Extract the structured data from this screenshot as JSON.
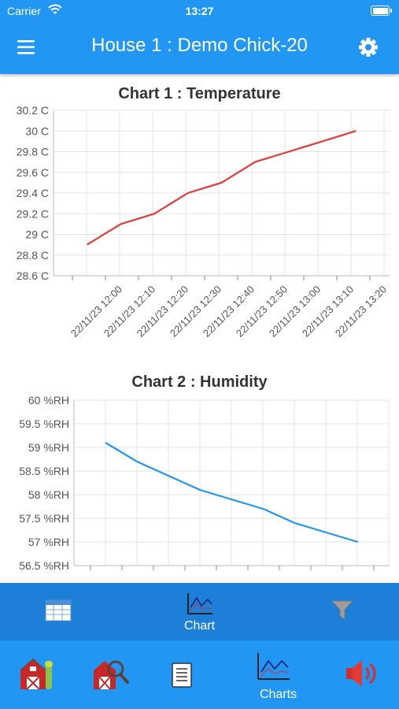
{
  "status_bar": {
    "carrier": "Carrier",
    "time": "13:27"
  },
  "header": {
    "title": "House 1 : Demo Chick-20"
  },
  "charts": [
    {
      "title": "Chart 1 : Temperature",
      "chart_data": {
        "type": "line",
        "title": "Chart 1 : Temperature",
        "unit": "C",
        "color": "#e53935",
        "y_ticks": [
          "30.2 C",
          "30 C",
          "29.8 C",
          "29.6 C",
          "29.4 C",
          "29.2 C",
          "29 C",
          "28.8 C",
          "28.6 C"
        ],
        "ylim": [
          28.6,
          30.2
        ],
        "x_ticks": [
          "22/11/23 12:00",
          "22/11/23 12:10",
          "22/11/23 12:20",
          "22/11/23 12:30",
          "22/11/23 12:40",
          "22/11/23 12:50",
          "22/11/23 13:00",
          "22/11/23 13:10",
          "22/11/23 13:20"
        ],
        "series": [
          {
            "x": [
              "22/11/23 11:55",
              "22/11/23 12:05",
              "22/11/23 12:15",
              "22/11/23 12:25",
              "22/11/23 12:35",
              "22/11/23 12:45",
              "22/11/23 12:55",
              "22/11/23 13:05",
              "22/11/23 13:15"
            ],
            "values": [
              28.9,
              29.1,
              29.2,
              29.4,
              29.5,
              29.7,
              29.8,
              29.9,
              30.0
            ]
          }
        ],
        "grid": true
      }
    },
    {
      "title": "Chart 2 : Humidity",
      "chart_data": {
        "type": "line",
        "title": "Chart 2 : Humidity",
        "unit": "%RH",
        "color": "#2196F3",
        "y_ticks": [
          "60 %RH",
          "59.5 %RH",
          "59 %RH",
          "58.5 %RH",
          "58 %RH",
          "57.5 %RH",
          "57 %RH",
          "56.5 %RH"
        ],
        "ylim": [
          56.5,
          60
        ],
        "x_ticks": [],
        "series": [
          {
            "x": [
              "22/11/23 11:55",
              "22/11/23 12:00",
              "22/11/23 12:05",
              "22/11/23 12:15",
              "22/11/23 12:25",
              "22/11/23 12:35",
              "22/11/23 12:45",
              "22/11/23 12:55",
              "22/11/23 13:05",
              "22/11/23 13:15"
            ],
            "values": [
              59.1,
              58.9,
              58.7,
              58.4,
              58.1,
              57.9,
              57.7,
              57.4,
              57.2,
              57.0
            ]
          }
        ],
        "grid": true
      }
    }
  ],
  "tabs": [
    {
      "label": "",
      "icon": "table-icon"
    },
    {
      "label": "Chart",
      "icon": "chart-icon"
    },
    {
      "label": "",
      "icon": "filter-icon"
    }
  ],
  "bottom_nav": [
    {
      "label": "",
      "icon": "barn-icon"
    },
    {
      "label": "",
      "icon": "barn-search-icon"
    },
    {
      "label": "",
      "icon": "document-icon"
    },
    {
      "label": "Charts",
      "icon": "charts-icon"
    },
    {
      "label": "",
      "icon": "speaker-icon"
    }
  ],
  "colors": {
    "primary": "#2196F3",
    "tab_bar": "#1e7fd8",
    "temperature_line": "#e53935",
    "humidity_line": "#2196F3"
  }
}
